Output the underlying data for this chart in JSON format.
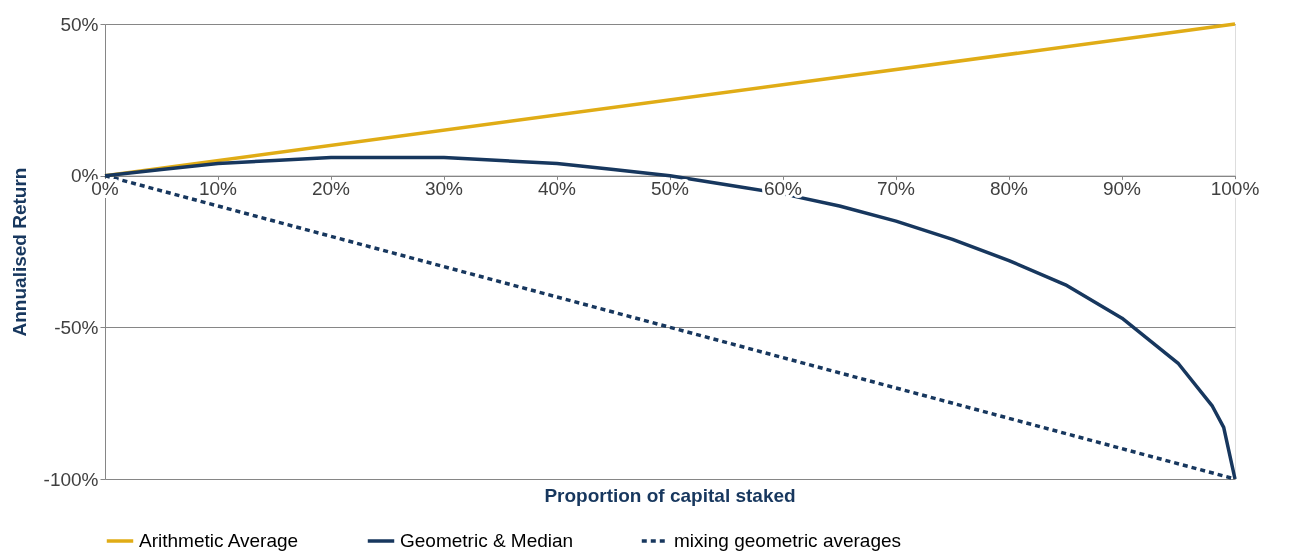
{
  "chart_data": {
    "type": "line",
    "xlabel": "Proportion of capital staked",
    "ylabel": "Annualised Return",
    "xlim": [
      0,
      100
    ],
    "ylim": [
      -100,
      50
    ],
    "xticks": [
      {
        "value": 0,
        "label": "0%"
      },
      {
        "value": 10,
        "label": "10%"
      },
      {
        "value": 20,
        "label": "20%"
      },
      {
        "value": 30,
        "label": "30%"
      },
      {
        "value": 40,
        "label": "40%"
      },
      {
        "value": 50,
        "label": "50%"
      },
      {
        "value": 60,
        "label": "60%"
      },
      {
        "value": 70,
        "label": "70%"
      },
      {
        "value": 80,
        "label": "80%"
      },
      {
        "value": 90,
        "label": "90%"
      },
      {
        "value": 100,
        "label": "100%"
      }
    ],
    "yticks": [
      {
        "value": -100,
        "label": "-100%"
      },
      {
        "value": -50,
        "label": "-50%"
      },
      {
        "value": 0,
        "label": "0%"
      },
      {
        "value": 50,
        "label": "50%"
      }
    ],
    "grid": "y",
    "legend": "bottom",
    "marker": "none",
    "series": [
      {
        "name": "Arithmetic Average",
        "color": "#e0ac16",
        "line_style": "solid",
        "x": [
          0,
          100
        ],
        "values": [
          0,
          50
        ]
      },
      {
        "name": "Geometric & Median",
        "color": "#17375e",
        "line_style": "solid",
        "x": [
          0,
          5,
          10,
          15,
          20,
          25,
          30,
          35,
          40,
          45,
          50,
          55,
          60,
          65,
          70,
          75,
          80,
          85,
          90,
          95,
          98,
          99,
          100
        ],
        "values": [
          0,
          2,
          4,
          5,
          6,
          6,
          6,
          5,
          4,
          2,
          0,
          -3,
          -6,
          -10,
          -15,
          -21,
          -28,
          -36,
          -47,
          -62,
          -76,
          -83,
          -100
        ]
      },
      {
        "name": "mixing geometric averages",
        "color": "#17375e",
        "line_style": "dashed",
        "x": [
          0,
          100
        ],
        "values": [
          0,
          -100
        ]
      }
    ]
  }
}
